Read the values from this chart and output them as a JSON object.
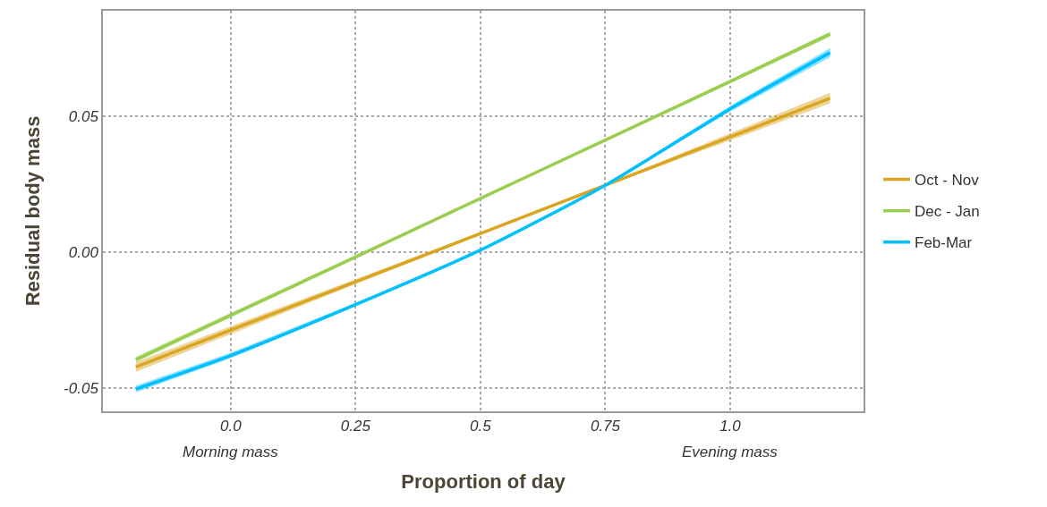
{
  "chart_data": {
    "type": "line",
    "xlabel": "Proportion of day",
    "ylabel": "Residual body mass",
    "x": [
      -0.19,
      0,
      0.25,
      0.5,
      0.75,
      1.0,
      1.2
    ],
    "series": [
      {
        "name": "Oct - Nov",
        "color": "#daa520",
        "values": [
          -0.0422,
          -0.0287,
          -0.0109,
          0.0068,
          0.0245,
          0.0423,
          0.0565
        ],
        "lower": [
          -0.044,
          -0.0302,
          -0.0118,
          0.0063,
          0.0242,
          0.041,
          0.0545
        ],
        "upper": [
          -0.0404,
          -0.0272,
          -0.01,
          0.0073,
          0.0248,
          0.0436,
          0.0585
        ]
      },
      {
        "name": "Dec - Jan",
        "color": "#9acd50",
        "values": [
          -0.0395,
          -0.0232,
          -0.0018,
          0.0197,
          0.0411,
          0.0626,
          0.08
        ],
        "lower": [
          -0.0405,
          -0.0241,
          -0.0024,
          0.0193,
          0.0406,
          0.0619,
          0.079
        ],
        "upper": [
          -0.0385,
          -0.0223,
          -0.0012,
          0.0201,
          0.0416,
          0.0633,
          0.081
        ]
      },
      {
        "name": "Feb-Mar",
        "color": "#00bfff",
        "values": [
          -0.0503,
          -0.038,
          -0.0193,
          0.0007,
          0.0245,
          0.0526,
          0.0732
        ],
        "lower": [
          -0.0515,
          -0.039,
          -0.0199,
          0.0003,
          0.0242,
          0.0516,
          0.0715
        ],
        "upper": [
          -0.0491,
          -0.037,
          -0.0187,
          0.0011,
          0.0248,
          0.0536,
          0.0749
        ]
      }
    ],
    "xlim": [
      -0.256,
      1.267
    ],
    "ylim": [
      -0.0585,
      0.0886
    ],
    "xticks": [
      {
        "value": 0,
        "label": "0.0"
      },
      0.25,
      0.5,
      0.75,
      {
        "value": 1,
        "label": "1.0"
      }
    ],
    "annotations": [
      "Morning mass",
      "Evening mass"
    ],
    "yticks": [
      {
        "value": -0.05,
        "label": "-0.05"
      },
      {
        "value": 0,
        "label": "0.00"
      },
      0.05
    ],
    "grid": true,
    "legend": "right",
    "marker": "none",
    "line_style": "solid"
  }
}
